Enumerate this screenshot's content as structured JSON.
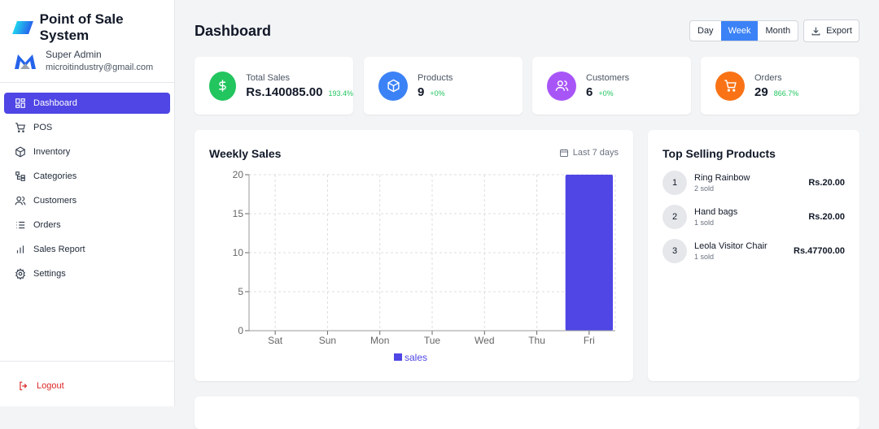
{
  "app": {
    "title": "Point of Sale System"
  },
  "user": {
    "name": "Super Admin",
    "email": "microitindustry@gmail.com"
  },
  "nav": [
    {
      "label": "Dashboard",
      "icon": "dashboard-icon",
      "active": true
    },
    {
      "label": "POS",
      "icon": "cart-icon"
    },
    {
      "label": "Inventory",
      "icon": "box-icon"
    },
    {
      "label": "Categories",
      "icon": "categories-icon"
    },
    {
      "label": "Customers",
      "icon": "users-icon"
    },
    {
      "label": "Orders",
      "icon": "list-icon"
    },
    {
      "label": "Sales Report",
      "icon": "bar-chart-icon"
    },
    {
      "label": "Settings",
      "icon": "gear-icon"
    }
  ],
  "logout": "Logout",
  "header": {
    "title": "Dashboard",
    "periods": [
      "Day",
      "Week",
      "Month"
    ],
    "selected_period": "Week",
    "export": "Export"
  },
  "stats": [
    {
      "label": "Total Sales",
      "value": "Rs.140085.00",
      "change": "193.4%",
      "color": "#22c55e",
      "icon": "dollar-icon"
    },
    {
      "label": "Products",
      "value": "9",
      "change": "+0%",
      "color": "#3b82f6",
      "icon": "box-icon"
    },
    {
      "label": "Customers",
      "value": "6",
      "change": "+0%",
      "color": "#a855f7",
      "icon": "users-icon"
    },
    {
      "label": "Orders",
      "value": "29",
      "change": "866.7%",
      "color": "#f97316",
      "icon": "cart-icon"
    }
  ],
  "weekly": {
    "title": "Weekly Sales",
    "range": "Last 7 days"
  },
  "chart_data": {
    "type": "bar",
    "categories": [
      "Sat",
      "Sun",
      "Mon",
      "Tue",
      "Wed",
      "Thu",
      "Fri"
    ],
    "series": [
      {
        "name": "sales",
        "values": [
          0,
          0,
          0,
          0,
          0,
          0,
          20
        ],
        "color": "#4f46e5"
      }
    ],
    "yticks": [
      0,
      5,
      10,
      15,
      20
    ],
    "ylim": [
      0,
      20
    ],
    "grid": true,
    "legend": "bottom"
  },
  "top_selling": {
    "title": "Top Selling Products",
    "items": [
      {
        "rank": "1",
        "name": "Ring Rainbow",
        "sold": "2 sold",
        "price": "Rs.20.00"
      },
      {
        "rank": "2",
        "name": "Hand bags",
        "sold": "1 sold",
        "price": "Rs.20.00"
      },
      {
        "rank": "3",
        "name": "Leola Visitor Chair",
        "sold": "1 sold",
        "price": "Rs.47700.00"
      }
    ]
  }
}
